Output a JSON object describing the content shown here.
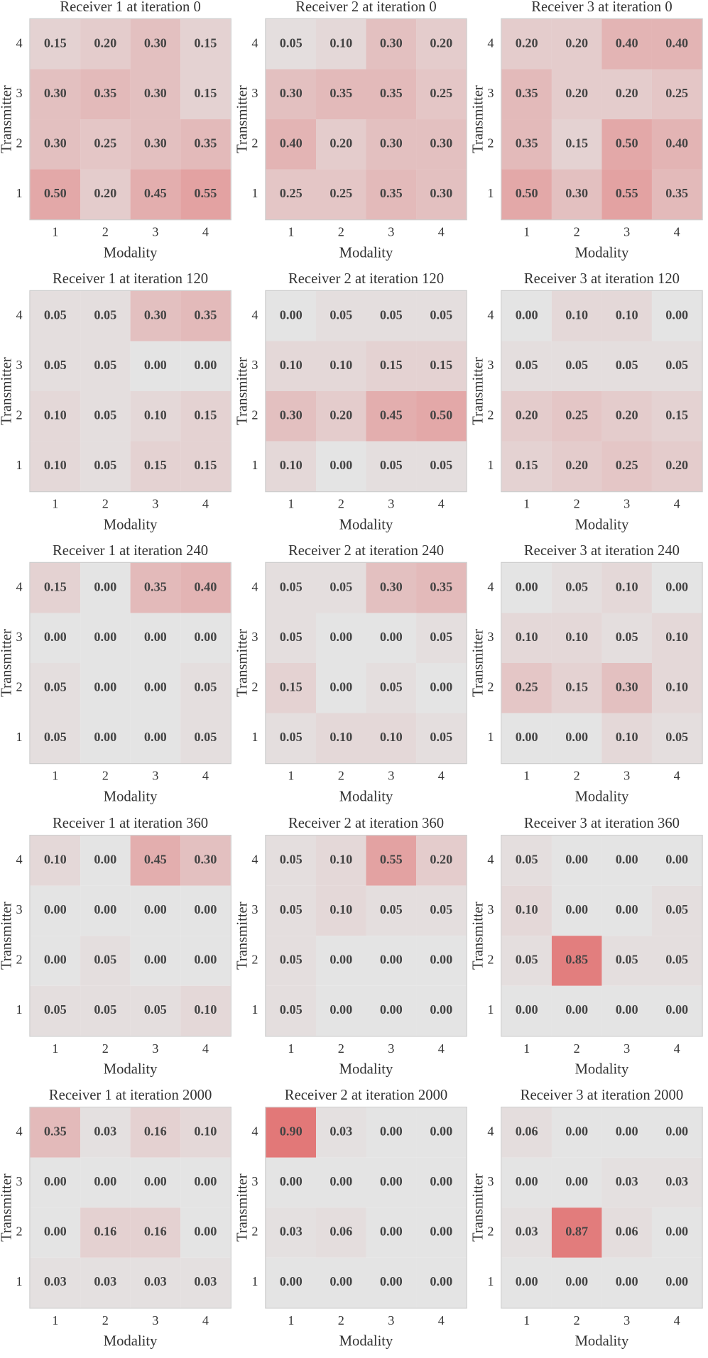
{
  "chart_data": [
    {
      "type": "heatmap",
      "title": "Receiver 1 at iteration 0",
      "x_label": "Modality",
      "y_label": "Transmitter",
      "x": [
        "1",
        "2",
        "3",
        "4"
      ],
      "y": [
        "4",
        "3",
        "2",
        "1"
      ],
      "cmap": [
        "#e4e4e4",
        "#e26c6c"
      ],
      "values": [
        [
          0.15,
          0.2,
          0.3,
          0.15
        ],
        [
          0.3,
          0.35,
          0.3,
          0.15
        ],
        [
          0.3,
          0.25,
          0.3,
          0.35
        ],
        [
          0.5,
          0.2,
          0.45,
          0.55
        ]
      ],
      "value_labels": [
        [
          "0.15",
          "0.20",
          "0.30",
          "0.15"
        ],
        [
          "0.30",
          "0.35",
          "0.30",
          "0.15"
        ],
        [
          "0.30",
          "0.25",
          "0.30",
          "0.35"
        ],
        [
          "0.50",
          "0.20",
          "0.45",
          "0.55"
        ]
      ]
    },
    {
      "type": "heatmap",
      "title": "Receiver 2 at iteration 0",
      "x_label": "Modality",
      "y_label": "Transmitter",
      "x": [
        "1",
        "2",
        "3",
        "4"
      ],
      "y": [
        "4",
        "3",
        "2",
        "1"
      ],
      "cmap": [
        "#e4e4e4",
        "#e26c6c"
      ],
      "values": [
        [
          0.05,
          0.1,
          0.3,
          0.2
        ],
        [
          0.3,
          0.35,
          0.35,
          0.25
        ],
        [
          0.4,
          0.2,
          0.3,
          0.3
        ],
        [
          0.25,
          0.25,
          0.35,
          0.3
        ]
      ],
      "value_labels": [
        [
          "0.05",
          "0.10",
          "0.30",
          "0.20"
        ],
        [
          "0.30",
          "0.35",
          "0.35",
          "0.25"
        ],
        [
          "0.40",
          "0.20",
          "0.30",
          "0.30"
        ],
        [
          "0.25",
          "0.25",
          "0.35",
          "0.30"
        ]
      ]
    },
    {
      "type": "heatmap",
      "title": "Receiver 3 at iteration 0",
      "x_label": "Modality",
      "y_label": "Transmitter",
      "x": [
        "1",
        "2",
        "3",
        "4"
      ],
      "y": [
        "4",
        "3",
        "2",
        "1"
      ],
      "cmap": [
        "#e4e4e4",
        "#e26c6c"
      ],
      "values": [
        [
          0.2,
          0.2,
          0.4,
          0.4
        ],
        [
          0.35,
          0.2,
          0.2,
          0.25
        ],
        [
          0.35,
          0.15,
          0.5,
          0.4
        ],
        [
          0.5,
          0.3,
          0.55,
          0.35
        ]
      ],
      "value_labels": [
        [
          "0.20",
          "0.20",
          "0.40",
          "0.40"
        ],
        [
          "0.35",
          "0.20",
          "0.20",
          "0.25"
        ],
        [
          "0.35",
          "0.15",
          "0.50",
          "0.40"
        ],
        [
          "0.50",
          "0.30",
          "0.55",
          "0.35"
        ]
      ]
    },
    {
      "type": "heatmap",
      "title": "Receiver 1 at iteration 120",
      "x_label": "Modality",
      "y_label": "Transmitter",
      "x": [
        "1",
        "2",
        "3",
        "4"
      ],
      "y": [
        "4",
        "3",
        "2",
        "1"
      ],
      "cmap": [
        "#e4e4e4",
        "#e26c6c"
      ],
      "values": [
        [
          0.05,
          0.05,
          0.3,
          0.35
        ],
        [
          0.05,
          0.05,
          0,
          0
        ],
        [
          0.1,
          0.05,
          0.1,
          0.15
        ],
        [
          0.1,
          0.05,
          0.15,
          0.15
        ]
      ],
      "value_labels": [
        [
          "0.05",
          "0.05",
          "0.30",
          "0.35"
        ],
        [
          "0.05",
          "0.05",
          "0.00",
          "0.00"
        ],
        [
          "0.10",
          "0.05",
          "0.10",
          "0.15"
        ],
        [
          "0.10",
          "0.05",
          "0.15",
          "0.15"
        ]
      ]
    },
    {
      "type": "heatmap",
      "title": "Receiver 2 at iteration 120",
      "x_label": "Modality",
      "y_label": "Transmitter",
      "x": [
        "1",
        "2",
        "3",
        "4"
      ],
      "y": [
        "4",
        "3",
        "2",
        "1"
      ],
      "cmap": [
        "#e4e4e4",
        "#e26c6c"
      ],
      "values": [
        [
          0,
          0.05,
          0.05,
          0.05
        ],
        [
          0.1,
          0.1,
          0.15,
          0.15
        ],
        [
          0.3,
          0.2,
          0.45,
          0.5
        ],
        [
          0.1,
          0,
          0.05,
          0.05
        ]
      ],
      "value_labels": [
        [
          "0.00",
          "0.05",
          "0.05",
          "0.05"
        ],
        [
          "0.10",
          "0.10",
          "0.15",
          "0.15"
        ],
        [
          "0.30",
          "0.20",
          "0.45",
          "0.50"
        ],
        [
          "0.10",
          "0.00",
          "0.05",
          "0.05"
        ]
      ]
    },
    {
      "type": "heatmap",
      "title": "Receiver 3 at iteration 120",
      "x_label": "Modality",
      "y_label": "Transmitter",
      "x": [
        "1",
        "2",
        "3",
        "4"
      ],
      "y": [
        "4",
        "3",
        "2",
        "1"
      ],
      "cmap": [
        "#e4e4e4",
        "#e26c6c"
      ],
      "values": [
        [
          0,
          0.1,
          0.1,
          0
        ],
        [
          0.05,
          0.05,
          0.05,
          0.05
        ],
        [
          0.2,
          0.25,
          0.2,
          0.15
        ],
        [
          0.15,
          0.2,
          0.25,
          0.2
        ]
      ],
      "value_labels": [
        [
          "0.00",
          "0.10",
          "0.10",
          "0.00"
        ],
        [
          "0.05",
          "0.05",
          "0.05",
          "0.05"
        ],
        [
          "0.20",
          "0.25",
          "0.20",
          "0.15"
        ],
        [
          "0.15",
          "0.20",
          "0.25",
          "0.20"
        ]
      ]
    },
    {
      "type": "heatmap",
      "title": "Receiver 1 at iteration 240",
      "x_label": "Modality",
      "y_label": "Transmitter",
      "x": [
        "1",
        "2",
        "3",
        "4"
      ],
      "y": [
        "4",
        "3",
        "2",
        "1"
      ],
      "cmap": [
        "#e4e4e4",
        "#e26c6c"
      ],
      "values": [
        [
          0.15,
          0,
          0.35,
          0.4
        ],
        [
          0,
          0,
          0,
          0
        ],
        [
          0.05,
          0,
          0,
          0.05
        ],
        [
          0.05,
          0,
          0,
          0.05
        ]
      ],
      "value_labels": [
        [
          "0.15",
          "0.00",
          "0.35",
          "0.40"
        ],
        [
          "0.00",
          "0.00",
          "0.00",
          "0.00"
        ],
        [
          "0.05",
          "0.00",
          "0.00",
          "0.05"
        ],
        [
          "0.05",
          "0.00",
          "0.00",
          "0.05"
        ]
      ]
    },
    {
      "type": "heatmap",
      "title": "Receiver 2 at iteration 240",
      "x_label": "Modality",
      "y_label": "Transmitter",
      "x": [
        "1",
        "2",
        "3",
        "4"
      ],
      "y": [
        "4",
        "3",
        "2",
        "1"
      ],
      "cmap": [
        "#e4e4e4",
        "#e26c6c"
      ],
      "values": [
        [
          0.05,
          0.05,
          0.3,
          0.35
        ],
        [
          0.05,
          0,
          0,
          0.05
        ],
        [
          0.15,
          0,
          0.05,
          0
        ],
        [
          0.05,
          0.1,
          0.1,
          0.05
        ]
      ],
      "value_labels": [
        [
          "0.05",
          "0.05",
          "0.30",
          "0.35"
        ],
        [
          "0.05",
          "0.00",
          "0.00",
          "0.05"
        ],
        [
          "0.15",
          "0.00",
          "0.05",
          "0.00"
        ],
        [
          "0.05",
          "0.10",
          "0.10",
          "0.05"
        ]
      ]
    },
    {
      "type": "heatmap",
      "title": "Receiver 3 at iteration 240",
      "x_label": "Modality",
      "y_label": "Transmitter",
      "x": [
        "1",
        "2",
        "3",
        "4"
      ],
      "y": [
        "4",
        "3",
        "2",
        "1"
      ],
      "cmap": [
        "#e4e4e4",
        "#e26c6c"
      ],
      "values": [
        [
          0,
          0.05,
          0.1,
          0
        ],
        [
          0.1,
          0.1,
          0.05,
          0.1
        ],
        [
          0.25,
          0.15,
          0.3,
          0.1
        ],
        [
          0,
          0,
          0.1,
          0.05
        ]
      ],
      "value_labels": [
        [
          "0.00",
          "0.05",
          "0.10",
          "0.00"
        ],
        [
          "0.10",
          "0.10",
          "0.05",
          "0.10"
        ],
        [
          "0.25",
          "0.15",
          "0.30",
          "0.10"
        ],
        [
          "0.00",
          "0.00",
          "0.10",
          "0.05"
        ]
      ]
    },
    {
      "type": "heatmap",
      "title": "Receiver 1 at iteration 360",
      "x_label": "Modality",
      "y_label": "Transmitter",
      "x": [
        "1",
        "2",
        "3",
        "4"
      ],
      "y": [
        "4",
        "3",
        "2",
        "1"
      ],
      "cmap": [
        "#e4e4e4",
        "#e26c6c"
      ],
      "values": [
        [
          0.1,
          0,
          0.45,
          0.3
        ],
        [
          0,
          0,
          0,
          0
        ],
        [
          0,
          0.05,
          0,
          0
        ],
        [
          0.05,
          0.05,
          0.05,
          0.1
        ]
      ],
      "value_labels": [
        [
          "0.10",
          "0.00",
          "0.45",
          "0.30"
        ],
        [
          "0.00",
          "0.00",
          "0.00",
          "0.00"
        ],
        [
          "0.00",
          "0.05",
          "0.00",
          "0.00"
        ],
        [
          "0.05",
          "0.05",
          "0.05",
          "0.10"
        ]
      ]
    },
    {
      "type": "heatmap",
      "title": "Receiver 2 at iteration 360",
      "x_label": "Modality",
      "y_label": "Transmitter",
      "x": [
        "1",
        "2",
        "3",
        "4"
      ],
      "y": [
        "4",
        "3",
        "2",
        "1"
      ],
      "cmap": [
        "#e4e4e4",
        "#e26c6c"
      ],
      "values": [
        [
          0.05,
          0.1,
          0.55,
          0.2
        ],
        [
          0.05,
          0.1,
          0.05,
          0.05
        ],
        [
          0.05,
          0,
          0,
          0
        ],
        [
          0.05,
          0,
          0,
          0
        ]
      ],
      "value_labels": [
        [
          "0.05",
          "0.10",
          "0.55",
          "0.20"
        ],
        [
          "0.05",
          "0.10",
          "0.05",
          "0.05"
        ],
        [
          "0.05",
          "0.00",
          "0.00",
          "0.00"
        ],
        [
          "0.05",
          "0.00",
          "0.00",
          "0.00"
        ]
      ]
    },
    {
      "type": "heatmap",
      "title": "Receiver 3 at iteration 360",
      "x_label": "Modality",
      "y_label": "Transmitter",
      "x": [
        "1",
        "2",
        "3",
        "4"
      ],
      "y": [
        "4",
        "3",
        "2",
        "1"
      ],
      "cmap": [
        "#e4e4e4",
        "#e26c6c"
      ],
      "values": [
        [
          0.05,
          0,
          0,
          0
        ],
        [
          0.1,
          0,
          0,
          0.05
        ],
        [
          0.05,
          0.85,
          0.05,
          0.05
        ],
        [
          0,
          0,
          0,
          0
        ]
      ],
      "value_labels": [
        [
          "0.05",
          "0.00",
          "0.00",
          "0.00"
        ],
        [
          "0.10",
          "0.00",
          "0.00",
          "0.05"
        ],
        [
          "0.05",
          "0.85",
          "0.05",
          "0.05"
        ],
        [
          "0.00",
          "0.00",
          "0.00",
          "0.00"
        ]
      ]
    },
    {
      "type": "heatmap",
      "title": "Receiver 1 at iteration 2000",
      "x_label": "Modality",
      "y_label": "Transmitter",
      "x": [
        "1",
        "2",
        "3",
        "4"
      ],
      "y": [
        "4",
        "3",
        "2",
        "1"
      ],
      "cmap": [
        "#e4e4e4",
        "#e26c6c"
      ],
      "values": [
        [
          0.35,
          0.03,
          0.16,
          0.1
        ],
        [
          0,
          0,
          0,
          0
        ],
        [
          0,
          0.16,
          0.16,
          0
        ],
        [
          0.03,
          0.03,
          0.03,
          0.03
        ]
      ],
      "value_labels": [
        [
          "0.35",
          "0.03",
          "0.16",
          "0.10"
        ],
        [
          "0.00",
          "0.00",
          "0.00",
          "0.00"
        ],
        [
          "0.00",
          "0.16",
          "0.16",
          "0.00"
        ],
        [
          "0.03",
          "0.03",
          "0.03",
          "0.03"
        ]
      ]
    },
    {
      "type": "heatmap",
      "title": "Receiver 2 at iteration 2000",
      "x_label": "Modality",
      "y_label": "Transmitter",
      "x": [
        "1",
        "2",
        "3",
        "4"
      ],
      "y": [
        "4",
        "3",
        "2",
        "1"
      ],
      "cmap": [
        "#e4e4e4",
        "#e26c6c"
      ],
      "values": [
        [
          0.9,
          0.03,
          0,
          0
        ],
        [
          0,
          0,
          0,
          0
        ],
        [
          0.03,
          0.06,
          0,
          0
        ],
        [
          0,
          0,
          0,
          0
        ]
      ],
      "value_labels": [
        [
          "0.90",
          "0.03",
          "0.00",
          "0.00"
        ],
        [
          "0.00",
          "0.00",
          "0.00",
          "0.00"
        ],
        [
          "0.03",
          "0.06",
          "0.00",
          "0.00"
        ],
        [
          "0.00",
          "0.00",
          "0.00",
          "0.00"
        ]
      ]
    },
    {
      "type": "heatmap",
      "title": "Receiver 3 at iteration 2000",
      "x_label": "Modality",
      "y_label": "Transmitter",
      "x": [
        "1",
        "2",
        "3",
        "4"
      ],
      "y": [
        "4",
        "3",
        "2",
        "1"
      ],
      "cmap": [
        "#e4e4e4",
        "#e26c6c"
      ],
      "values": [
        [
          0.06,
          0,
          0,
          0
        ],
        [
          0,
          0,
          0.03,
          0.03
        ],
        [
          0.03,
          0.87,
          0.06,
          0
        ],
        [
          0,
          0,
          0,
          0
        ]
      ],
      "value_labels": [
        [
          "0.06",
          "0.00",
          "0.00",
          "0.00"
        ],
        [
          "0.00",
          "0.00",
          "0.03",
          "0.03"
        ],
        [
          "0.03",
          "0.87",
          "0.06",
          "0.00"
        ],
        [
          "0.00",
          "0.00",
          "0.00",
          "0.00"
        ]
      ]
    }
  ]
}
